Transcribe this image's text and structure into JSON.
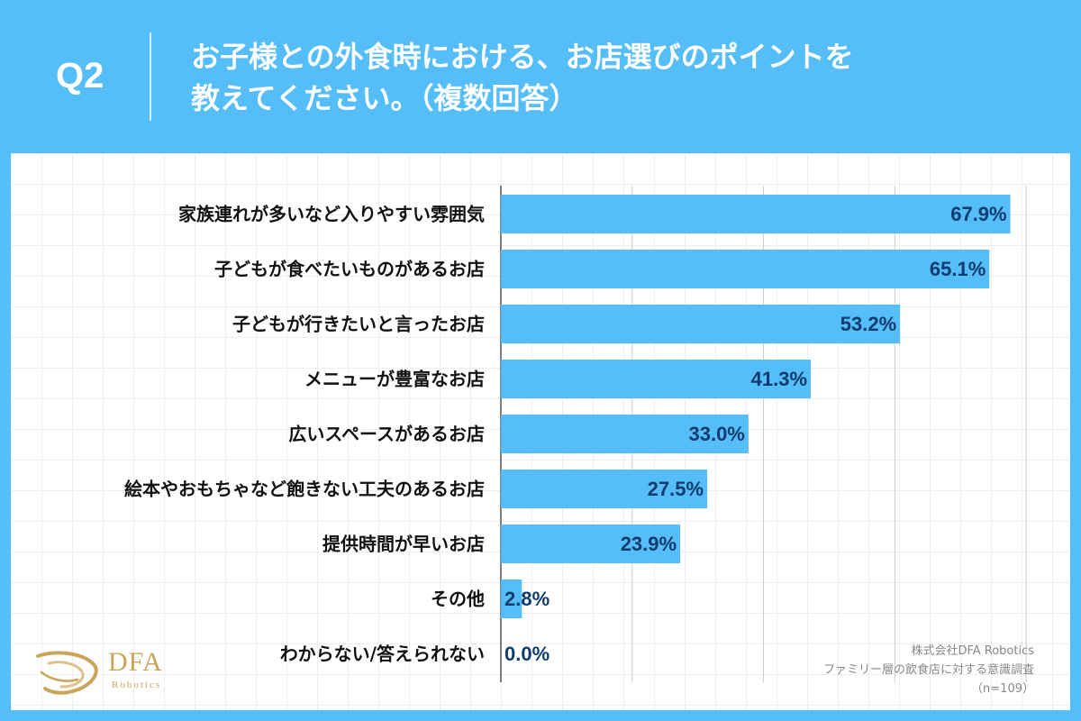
{
  "header": {
    "question_label": "Q2",
    "title_line1": "お子様との外食時における、お店選びのポイントを",
    "title_line2": "教えてください。（複数回答）"
  },
  "chart_data": {
    "type": "bar",
    "orientation": "horizontal",
    "categories": [
      "家族連れが多いなど入りやすい雰囲気",
      "子どもが食べたいものがあるお店",
      "子どもが行きたいと言ったお店",
      "メニューが豊富なお店",
      "広いスペースがあるお店",
      "絵本やおもちゃなど飽きない工夫のあるお店",
      "提供時間が早いお店",
      "その他",
      "わからない/答えられない"
    ],
    "values": [
      67.9,
      65.1,
      53.2,
      41.3,
      33.0,
      27.5,
      23.9,
      2.8,
      0.0
    ],
    "value_labels": [
      "67.9%",
      "65.1%",
      "53.2%",
      "41.3%",
      "33.0%",
      "27.5%",
      "23.9%",
      "2.8%",
      "0.0%"
    ],
    "xlim": [
      0,
      70
    ],
    "grid": true,
    "bar_color": "#55bdf7",
    "value_color": "#0f3c6e"
  },
  "logo": {
    "brand": "DFA",
    "sub": "Robotics",
    "color": "#c9a55a"
  },
  "source": {
    "company": "株式会社DFA Robotics",
    "survey": "ファミリー層の飲食店に対する意識調査",
    "sample": "（n=109）"
  }
}
